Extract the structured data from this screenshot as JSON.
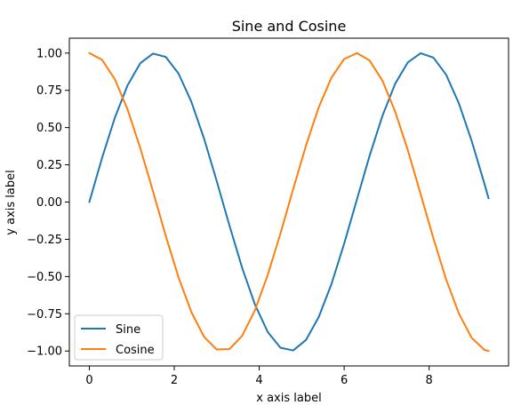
{
  "chart_data": {
    "type": "line",
    "title": "Sine and Cosine",
    "xlabel": "x axis label",
    "ylabel": "y axis label",
    "xlim": [
      -0.47,
      9.87
    ],
    "ylim": [
      -1.1,
      1.1
    ],
    "x_ticks": [
      0,
      2,
      4,
      6,
      8
    ],
    "y_ticks": [
      -1.0,
      -0.75,
      -0.5,
      -0.25,
      0.0,
      0.25,
      0.5,
      0.75,
      1.0
    ],
    "x_tick_labels": [
      "0",
      "2",
      "4",
      "6",
      "8"
    ],
    "y_tick_labels": [
      "−1.00",
      "−0.75",
      "−0.50",
      "−0.25",
      "0.00",
      "0.25",
      "0.50",
      "0.75",
      "1.00"
    ],
    "grid": false,
    "legend_position": "lower-left",
    "x": [
      0.0,
      0.3,
      0.6,
      0.9,
      1.2,
      1.5,
      1.8,
      2.1,
      2.4,
      2.7,
      3.0,
      3.3,
      3.6,
      3.9,
      4.2,
      4.5,
      4.8,
      5.1,
      5.4,
      5.7,
      6.0,
      6.3,
      6.6,
      6.9,
      7.2,
      7.5,
      7.8,
      8.1,
      8.4,
      8.7,
      9.0,
      9.3,
      9.4
    ],
    "series": [
      {
        "name": "Sine",
        "color": "#1f77b4",
        "values": [
          0.0,
          0.296,
          0.565,
          0.783,
          0.932,
          0.997,
          0.974,
          0.863,
          0.675,
          0.427,
          0.141,
          -0.158,
          -0.443,
          -0.688,
          -0.872,
          -0.978,
          -0.996,
          -0.926,
          -0.773,
          -0.551,
          -0.279,
          0.017,
          0.312,
          0.578,
          0.794,
          0.938,
          0.999,
          0.97,
          0.855,
          0.663,
          0.412,
          0.125,
          0.025
        ]
      },
      {
        "name": "Cosine",
        "color": "#ff7f0e",
        "values": [
          1.0,
          0.955,
          0.825,
          0.622,
          0.362,
          0.071,
          -0.227,
          -0.505,
          -0.737,
          -0.904,
          -0.99,
          -0.987,
          -0.897,
          -0.726,
          -0.49,
          -0.211,
          0.087,
          0.378,
          0.635,
          0.835,
          0.96,
          1.0,
          0.95,
          0.815,
          0.608,
          0.347,
          0.054,
          -0.243,
          -0.519,
          -0.748,
          -0.911,
          -0.992,
          -1.0
        ]
      }
    ]
  }
}
